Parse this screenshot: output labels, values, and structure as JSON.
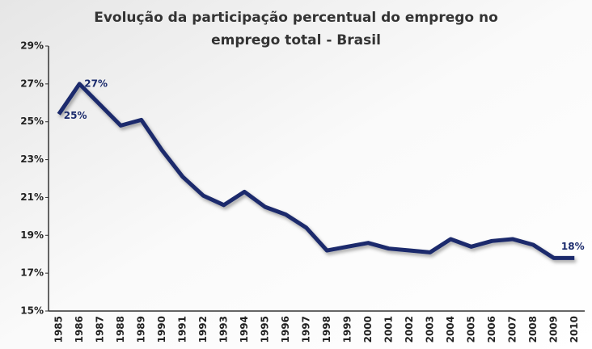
{
  "chart_data": {
    "type": "line",
    "title": [
      "Evolução da participação percentual do emprego no",
      "emprego total - Brasil"
    ],
    "categories": [
      "1985",
      "1986",
      "1987",
      "1988",
      "1989",
      "1990",
      "1991",
      "1992",
      "1993",
      "1994",
      "1995",
      "1996",
      "1997",
      "1998",
      "1999",
      "2000",
      "2001",
      "2002",
      "2003",
      "2004",
      "2005",
      "2006",
      "2007",
      "2008",
      "2009",
      "2010"
    ],
    "values": [
      25.4,
      27.0,
      25.9,
      24.8,
      25.1,
      23.5,
      22.1,
      21.1,
      20.6,
      21.3,
      20.5,
      20.1,
      19.4,
      18.2,
      18.4,
      18.6,
      18.3,
      18.2,
      18.1,
      18.8,
      18.4,
      18.7,
      18.8,
      18.5,
      17.8,
      17.8
    ],
    "value_labels": [
      "25%",
      "27%",
      null,
      null,
      null,
      null,
      null,
      null,
      null,
      null,
      null,
      null,
      null,
      null,
      null,
      null,
      null,
      null,
      null,
      null,
      null,
      null,
      null,
      null,
      null,
      "18%"
    ],
    "color": "#1a2a6c",
    "ylim": [
      15,
      29
    ],
    "yticks": [
      {
        "value": 15,
        "label": "15%"
      },
      {
        "value": 17,
        "label": "17%"
      },
      {
        "value": 19,
        "label": "19%"
      },
      {
        "value": 21,
        "label": "21%"
      },
      {
        "value": 23,
        "label": "23%"
      },
      {
        "value": 25,
        "label": "25%"
      },
      {
        "value": 27,
        "label": "27%"
      },
      {
        "value": 29,
        "label": "29%"
      }
    ],
    "grid": false
  }
}
